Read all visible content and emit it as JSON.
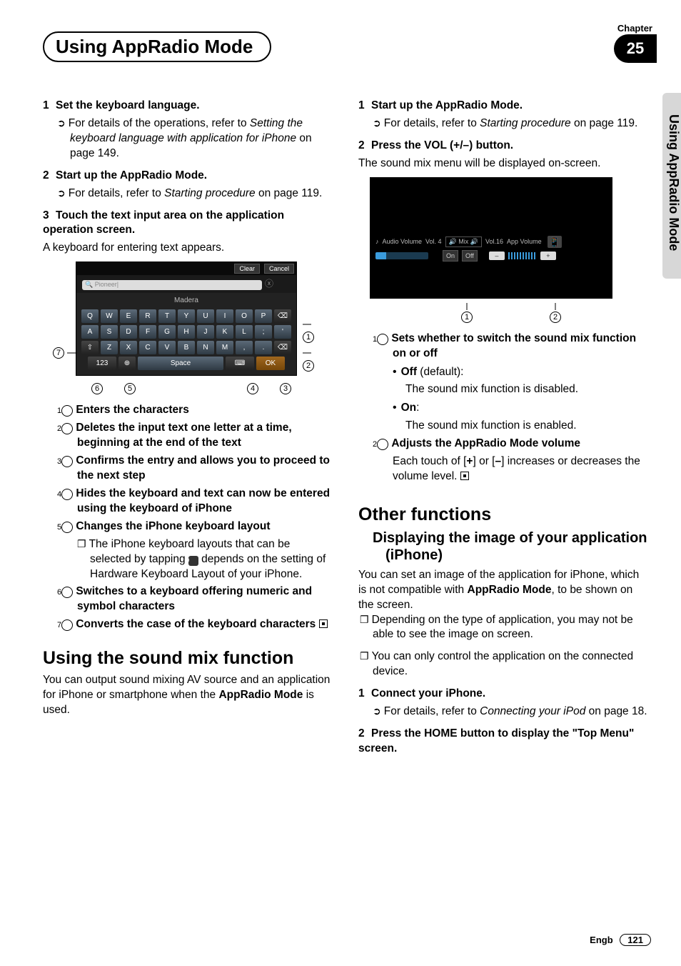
{
  "chapter": {
    "label": "Chapter",
    "number": "25"
  },
  "title": "Using AppRadio Mode",
  "side_tab": "Using AppRadio Mode",
  "footer": {
    "lang": "Engb",
    "page": "121"
  },
  "left": {
    "step1": {
      "num": "1",
      "head": "Set the keyboard language.",
      "sub_a": "For details of the operations, refer to ",
      "sub_a_i1": "Setting the keyboard language with application for iPhone",
      "sub_a_tail": " on page 149."
    },
    "step2": {
      "num": "2",
      "head": "Start up the AppRadio Mode.",
      "sub_a": "For details, refer to ",
      "sub_a_i1": "Starting procedure",
      "sub_a_tail": " on page 119."
    },
    "step3": {
      "num": "3",
      "head": "Touch the text input area on the application operation screen.",
      "body": "A keyboard for entering text appears."
    },
    "kb": {
      "clear": "Clear",
      "cancel": "Cancel",
      "search_ph": "Pioneer",
      "suggest": "Madera",
      "row1": [
        "Q",
        "W",
        "E",
        "R",
        "T",
        "Y",
        "U",
        "I",
        "O",
        "P",
        "⌫"
      ],
      "row2": [
        "A",
        "S",
        "D",
        "F",
        "G",
        "H",
        "J",
        "K",
        "L",
        ";",
        "'"
      ],
      "row3": [
        "⇧",
        "Z",
        "X",
        "C",
        "V",
        "B",
        "N",
        "M",
        ",",
        ".",
        "⌫"
      ],
      "row4": [
        "123",
        "⊕",
        "Space",
        "⌨",
        "OK"
      ]
    },
    "legend": {
      "i1": "Enters the characters",
      "i2": "Deletes the input text one letter at a time, beginning at the end of the text",
      "i3": "Confirms the entry and allows you to proceed to the next step",
      "i4": "Hides the keyboard and text can now be entered using the keyboard of iPhone",
      "i5": "Changes the iPhone keyboard layout",
      "i5_note_a": "The iPhone keyboard layouts that can be selected by tapping ",
      "i5_note_b": " depends on the setting of Hardware Keyboard Layout of your iPhone.",
      "i6": "Switches to a keyboard offering numeric and symbol characters",
      "i7": "Converts the case of the keyboard characters"
    },
    "sound_mix": {
      "heading": "Using the sound mix function",
      "body1": "You can output sound mixing AV source and an application for iPhone or smartphone when the ",
      "body1_b": "AppRadio Mode",
      "body1_tail": " is used."
    }
  },
  "right": {
    "step1": {
      "num": "1",
      "head": "Start up the AppRadio Mode.",
      "sub_a": "For details, refer to ",
      "sub_a_i1": "Starting procedure",
      "sub_a_tail": " on page 119."
    },
    "step2": {
      "num": "2",
      "head": "Press the VOL (+/–) button.",
      "body": "The sound mix menu will be displayed on-screen."
    },
    "mix": {
      "audio_volume": "Audio Volume",
      "vol4": "Vol. 4",
      "mix_label": "Mix",
      "on": "On",
      "off": "Off",
      "vol16": "Vol.16",
      "app_volume": "App Volume",
      "minus": "–",
      "plus": "+"
    },
    "legend": {
      "i1": "Sets whether to switch the sound mix function on or off",
      "i1_off_h": "Off",
      "i1_off_t": " (default):",
      "i1_off_b": "The sound mix function is disabled.",
      "i1_on_h": "On",
      "i1_on_t": ":",
      "i1_on_b": "The sound mix function is enabled.",
      "i2": "Adjusts the AppRadio Mode volume",
      "i2_body_a": "Each touch of [",
      "i2_body_b": "+",
      "i2_body_c": "] or [",
      "i2_body_d": "–",
      "i2_body_e": "] increases or decreases the volume level."
    },
    "other": {
      "heading": "Other functions",
      "subheading": "Displaying the image of your application (iPhone)",
      "p1_a": "You can set an image of the application for iPhone, which is not compatible with ",
      "p1_b": "AppRadio Mode",
      "p1_c": ", to be shown on the screen.",
      "n1": "Depending on the type of application, you may not be able to see the image on screen.",
      "n2": "You can only control the application on the connected device.",
      "step1": {
        "num": "1",
        "head": "Connect your iPhone.",
        "sub_a": "For details, refer to ",
        "sub_a_i1": "Connecting your iPod",
        "sub_a_tail": " on page 18."
      },
      "step2": {
        "num": "2",
        "head": "Press the HOME button to display the \"Top Menu\" screen."
      }
    }
  }
}
